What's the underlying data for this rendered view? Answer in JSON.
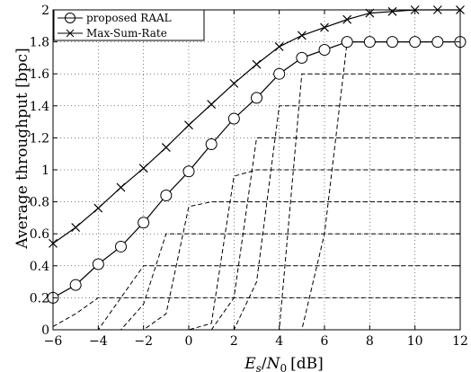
{
  "chart_data": {
    "type": "line",
    "xlabel": "E_s/N_0 [dB]",
    "xlabel_parts": {
      "E": "E",
      "s": "s",
      "slash": "/",
      "N": "N",
      "zero": "0",
      "unit": "[dB]"
    },
    "ylabel": "Average throughput [bpc]",
    "xlim": [
      -6,
      12
    ],
    "ylim": [
      0,
      2
    ],
    "xticks": [
      -6,
      -4,
      -2,
      0,
      2,
      4,
      6,
      8,
      10,
      12
    ],
    "yticks": [
      0,
      0.2,
      0.4,
      0.6,
      0.8,
      1,
      1.2,
      1.4,
      1.6,
      1.8,
      2
    ],
    "ytick_labels": [
      "0",
      "0.2",
      "0.4",
      "0.6",
      "0.8",
      "1",
      "1.2",
      "1.4",
      "1.6",
      "1.8",
      "2"
    ],
    "grid": true,
    "legend_position": "top-left",
    "series": [
      {
        "name": "proposed RAAL",
        "marker": "circle",
        "color": "#000000",
        "x": [
          -6,
          -5,
          -4,
          -3,
          -2,
          -1,
          0,
          1,
          2,
          3,
          4,
          5,
          6,
          7,
          8,
          9,
          10,
          11,
          12
        ],
        "y": [
          0.2,
          0.28,
          0.41,
          0.52,
          0.67,
          0.84,
          0.99,
          1.16,
          1.32,
          1.45,
          1.6,
          1.7,
          1.75,
          1.8,
          1.8,
          1.8,
          1.8,
          1.8,
          1.8
        ]
      },
      {
        "name": "Max-Sum-Rate",
        "marker": "x",
        "color": "#000000",
        "x": [
          -6,
          -5,
          -4,
          -3,
          -2,
          -1,
          0,
          1,
          2,
          3,
          4,
          5,
          6,
          7,
          8,
          9,
          10,
          11,
          12
        ],
        "y": [
          0.54,
          0.64,
          0.76,
          0.89,
          1.01,
          1.14,
          1.28,
          1.41,
          1.54,
          1.66,
          1.77,
          1.84,
          1.89,
          1.94,
          1.98,
          1.99,
          2.0,
          2.0,
          2.0
        ]
      }
    ],
    "dashed_series": [
      {
        "x": [
          -6,
          -5,
          -4,
          -3,
          -2,
          -1,
          0,
          1,
          2,
          3,
          4,
          5,
          6,
          7,
          8,
          9,
          10,
          11,
          12
        ],
        "y": [
          0.02,
          0.1,
          0.2,
          0.2,
          0.2,
          0.2,
          0.2,
          0.2,
          0.2,
          0.2,
          0.2,
          0.2,
          0.2,
          0.2,
          0.2,
          0.2,
          0.2,
          0.2,
          0.2
        ]
      },
      {
        "x": [
          -6,
          -5,
          -4,
          -3,
          -2,
          -1,
          0,
          1,
          2,
          3,
          4,
          5,
          6,
          7,
          8,
          9,
          10,
          11,
          12
        ],
        "y": [
          0.0,
          0.0,
          0.0,
          0.2,
          0.4,
          0.4,
          0.4,
          0.4,
          0.4,
          0.4,
          0.4,
          0.4,
          0.4,
          0.4,
          0.4,
          0.4,
          0.4,
          0.4,
          0.4
        ]
      },
      {
        "x": [
          -6,
          -5,
          -4,
          -3,
          -2,
          -1,
          0,
          1,
          2,
          3,
          4,
          5,
          6,
          7,
          8,
          9,
          10,
          11,
          12
        ],
        "y": [
          0.0,
          0.0,
          0.0,
          0.0,
          0.16,
          0.6,
          0.6,
          0.6,
          0.6,
          0.6,
          0.6,
          0.6,
          0.6,
          0.6,
          0.6,
          0.6,
          0.6,
          0.6,
          0.6
        ]
      },
      {
        "x": [
          -6,
          -5,
          -4,
          -3,
          -2,
          -1,
          0,
          1,
          2,
          3,
          4,
          5,
          6,
          7,
          8,
          9,
          10,
          11,
          12
        ],
        "y": [
          0.0,
          0.0,
          0.0,
          0.0,
          0.0,
          0.1,
          0.77,
          0.8,
          0.8,
          0.8,
          0.8,
          0.8,
          0.8,
          0.8,
          0.8,
          0.8,
          0.8,
          0.8,
          0.8
        ]
      },
      {
        "x": [
          -6,
          -5,
          -4,
          -3,
          -2,
          -1,
          0,
          1,
          2,
          3,
          4,
          5,
          6,
          7,
          8,
          9,
          10,
          11,
          12
        ],
        "y": [
          0.0,
          0.0,
          0.0,
          0.0,
          0.0,
          0.0,
          0.0,
          0.04,
          0.96,
          1.0,
          1.0,
          1.0,
          1.0,
          1.0,
          1.0,
          1.0,
          1.0,
          1.0,
          1.0
        ]
      },
      {
        "x": [
          -6,
          -5,
          -4,
          -3,
          -2,
          -1,
          0,
          1,
          2,
          3,
          4,
          5,
          6,
          7,
          8,
          9,
          10,
          11,
          12
        ],
        "y": [
          0.0,
          0.0,
          0.0,
          0.0,
          0.0,
          0.0,
          0.0,
          0.0,
          0.2,
          1.2,
          1.2,
          1.2,
          1.2,
          1.2,
          1.2,
          1.2,
          1.2,
          1.2,
          1.2
        ]
      },
      {
        "x": [
          -6,
          -5,
          -4,
          -3,
          -2,
          -1,
          0,
          1,
          2,
          3,
          4,
          5,
          6,
          7,
          8,
          9,
          10,
          11,
          12
        ],
        "y": [
          0.0,
          0.0,
          0.0,
          0.0,
          0.0,
          0.0,
          0.0,
          0.0,
          0.0,
          0.3,
          1.4,
          1.4,
          1.4,
          1.4,
          1.4,
          1.4,
          1.4,
          1.4,
          1.4
        ]
      },
      {
        "x": [
          -6,
          -5,
          -4,
          -3,
          -2,
          -1,
          0,
          1,
          2,
          3,
          4,
          5,
          6,
          7,
          8,
          9,
          10,
          11,
          12
        ],
        "y": [
          0.0,
          0.0,
          0.0,
          0.0,
          0.0,
          0.0,
          0.0,
          0.0,
          0.0,
          0.0,
          0.0,
          1.6,
          1.6,
          1.6,
          1.6,
          1.6,
          1.6,
          1.6,
          1.6
        ]
      },
      {
        "x": [
          -6,
          -5,
          -4,
          -3,
          -2,
          -1,
          0,
          1,
          2,
          3,
          4,
          5,
          6,
          7,
          8,
          9,
          10,
          11,
          12
        ],
        "y": [
          0.0,
          0.0,
          0.0,
          0.0,
          0.0,
          0.0,
          0.0,
          0.0,
          0.0,
          0.0,
          0.0,
          0.0,
          0.6,
          1.8,
          1.8,
          1.8,
          1.8,
          1.8,
          1.8
        ]
      }
    ]
  }
}
